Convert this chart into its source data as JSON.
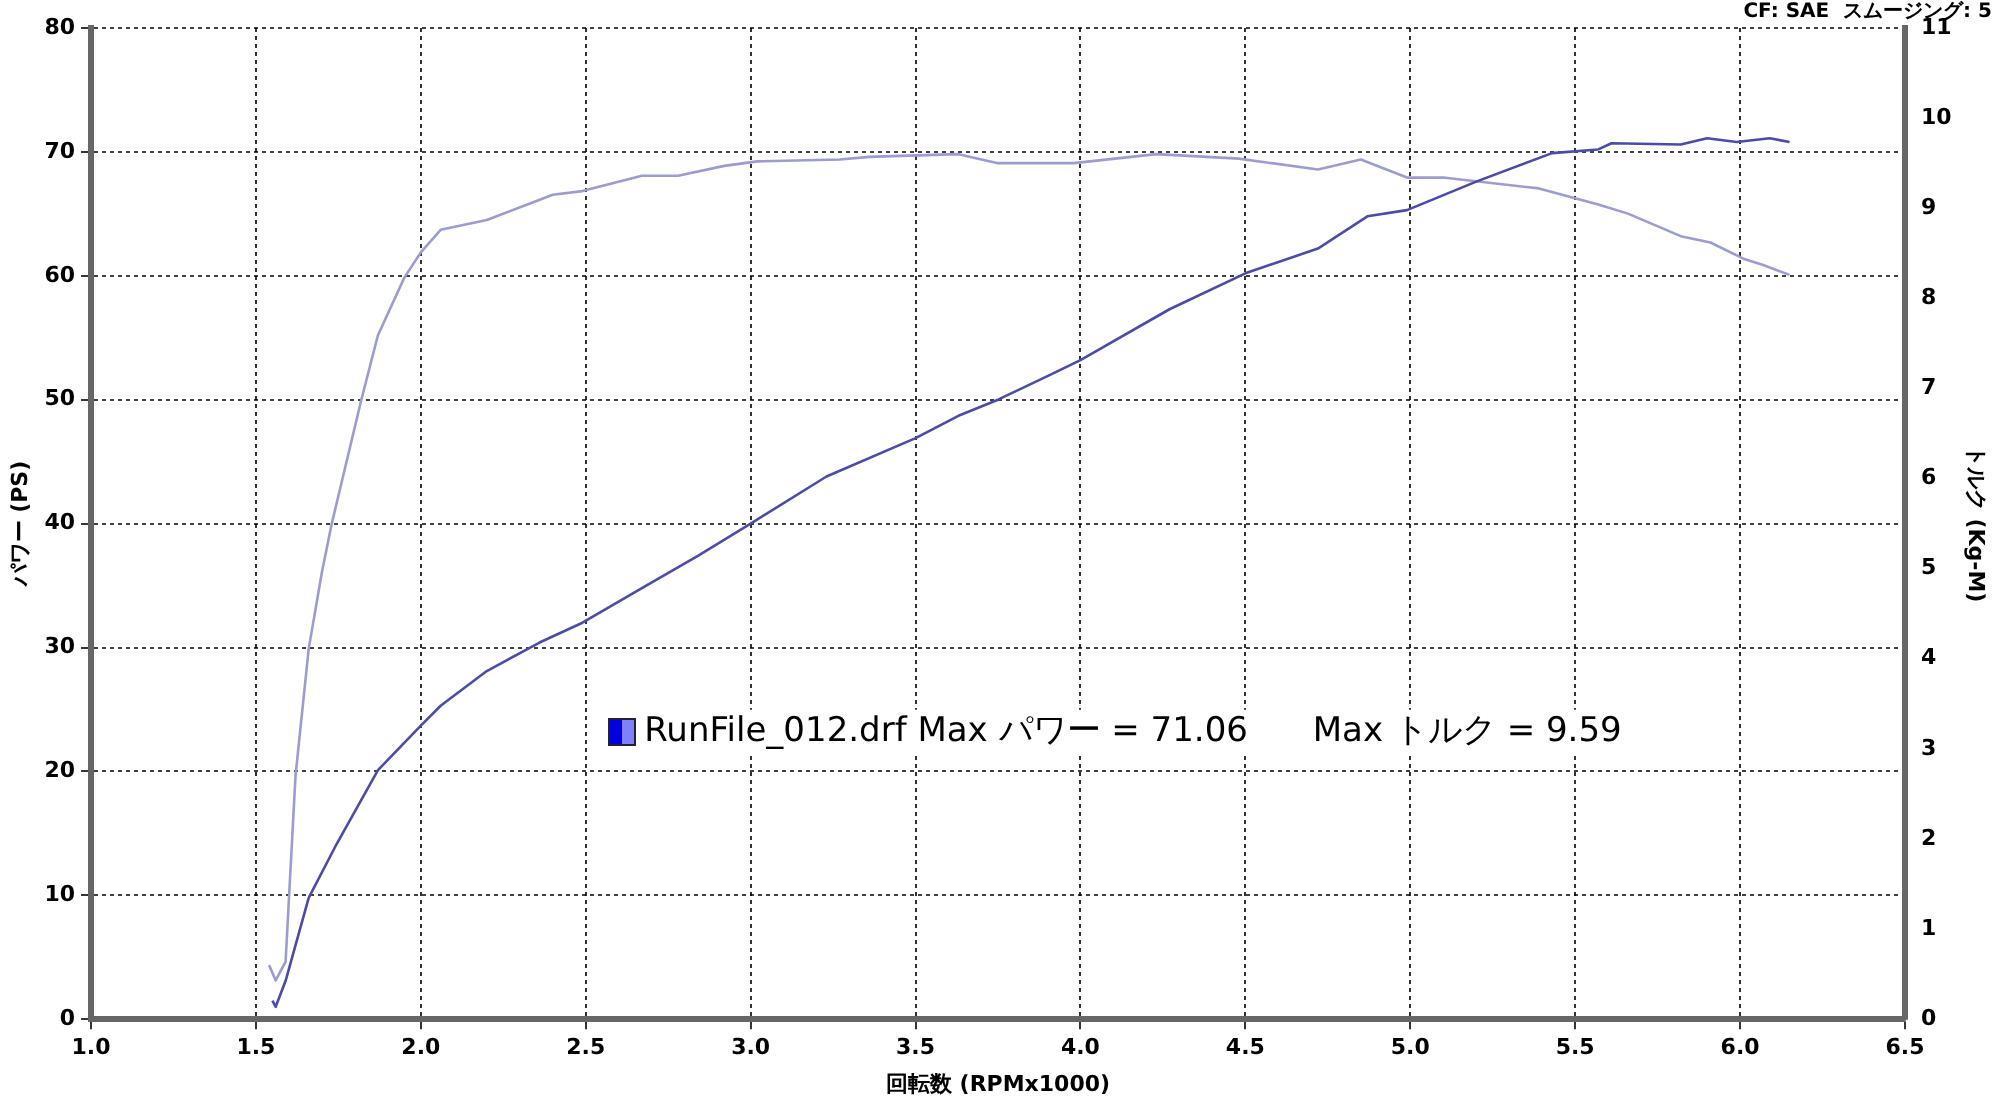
{
  "chart_data": {
    "type": "line",
    "xlabel": "回転数 (RPMx1000)",
    "ylabel": "パワー (PS)",
    "y2label": "トルク (Kg-M)",
    "annotations": [
      "CF: SAE  スムージング: 5",
      "RunFile_012.drf Max パワー = 71.06      Max トルク = 9.59"
    ],
    "xlim": [
      1.0,
      6.5
    ],
    "xticks": [
      {
        "value": 1.0,
        "label": "1.0"
      },
      {
        "value": 1.5,
        "label": "1.5"
      },
      {
        "value": 2.0,
        "label": "2.0"
      },
      {
        "value": 2.5,
        "label": "2.5"
      },
      {
        "value": 3.0,
        "label": "3.0"
      },
      {
        "value": 3.5,
        "label": "3.5"
      },
      {
        "value": 4.0,
        "label": "4.0"
      },
      {
        "value": 4.5,
        "label": "4.5"
      },
      {
        "value": 5.0,
        "label": "5.0"
      },
      {
        "value": 5.5,
        "label": "5.5"
      },
      {
        "value": 6.0,
        "label": "6.0"
      },
      {
        "value": 6.5,
        "label": "6.5"
      }
    ],
    "ylim": [
      0,
      80
    ],
    "yticks": [
      0,
      10,
      20,
      30,
      40,
      50,
      60,
      70,
      80
    ],
    "y2lim": [
      0,
      11
    ],
    "y2ticks": [
      0,
      1,
      2,
      3,
      4,
      5,
      6,
      7,
      8,
      9,
      10,
      11
    ],
    "grid": true,
    "marker": "none",
    "line_style": "solid",
    "series": [
      {
        "color": "#4c4ca6",
        "x": [
          1.55,
          1.56,
          1.59,
          1.66,
          1.74,
          1.87,
          2.0,
          2.06,
          2.2,
          2.36,
          2.49,
          2.69,
          2.84,
          3.0,
          3.23,
          3.5,
          3.63,
          3.75,
          3.9,
          4.0,
          4.27,
          4.5,
          4.72,
          4.87,
          4.99,
          5.2,
          5.43,
          5.57,
          5.61,
          5.82,
          5.9,
          5.99,
          6.09,
          6.15
        ],
        "values": [
          1.5,
          1.0,
          3.1,
          9.8,
          13.9,
          20.1,
          23.7,
          25.3,
          28.1,
          30.4,
          32.0,
          35.1,
          37.4,
          40.0,
          43.8,
          46.9,
          48.7,
          50.0,
          51.9,
          53.2,
          57.3,
          60.2,
          62.2,
          64.8,
          65.3,
          67.6,
          69.9,
          70.2,
          70.7,
          70.6,
          71.1,
          70.8,
          71.1,
          70.8
        ]
      },
      {
        "color": "#9c9cd0",
        "axis": "y2",
        "x": [
          1.54,
          1.56,
          1.59,
          1.62,
          1.66,
          1.7,
          1.73,
          1.82,
          1.87,
          1.95,
          2.0,
          2.06,
          2.2,
          2.4,
          2.49,
          2.67,
          2.78,
          2.92,
          3.02,
          3.27,
          3.36,
          3.63,
          3.75,
          3.98,
          4.23,
          4.48,
          4.72,
          4.85,
          4.99,
          5.1,
          5.39,
          5.57,
          5.66,
          5.82,
          5.91,
          6.01,
          6.07,
          6.15
        ],
        "values": [
          0.6,
          0.43,
          0.64,
          2.7,
          4.11,
          4.96,
          5.5,
          6.88,
          7.59,
          8.23,
          8.51,
          8.76,
          8.87,
          9.15,
          9.19,
          9.36,
          9.36,
          9.47,
          9.52,
          9.54,
          9.57,
          9.6,
          9.5,
          9.5,
          9.6,
          9.55,
          9.43,
          9.54,
          9.34,
          9.34,
          9.22,
          9.04,
          8.94,
          8.69,
          8.62,
          8.44,
          8.37,
          8.26
        ]
      }
    ]
  }
}
